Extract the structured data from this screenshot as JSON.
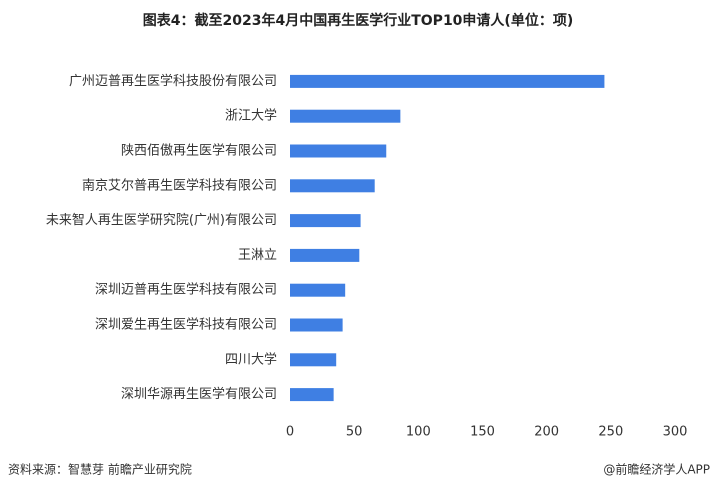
{
  "chart_data": {
    "type": "hbar",
    "title": "图表4：截至2023年4月中国再生医学行业TOP10申请人(单位：项)",
    "categories": [
      "广州迈普再生医学科技股份有限公司",
      "浙江大学",
      "陕西佰傲再生医学有限公司",
      "南京艾尔普再生医学科技有限公司",
      "未来智人再生医学研究院(广州)有限公司",
      "王淋立",
      "深圳迈普再生医学科技有限公司",
      "深圳爱生再生医学科技有限公司",
      "四川大学",
      "深圳华源再生医学有限公司"
    ],
    "values": [
      245,
      86,
      75,
      66,
      55,
      54,
      43,
      41,
      36,
      34
    ],
    "color": "#3f7fe3",
    "xlim": [
      0,
      300
    ],
    "xticks": [
      0,
      50,
      100,
      150,
      200,
      250,
      300
    ],
    "source": "资料来源：智慧芽 前瞻产业研究院",
    "credit": "@前瞻经济学人APP"
  }
}
